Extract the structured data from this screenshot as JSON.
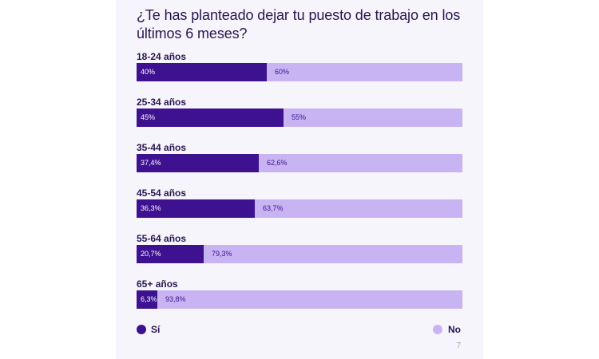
{
  "chart_data": {
    "type": "bar",
    "orientation": "horizontal",
    "stacked": true,
    "title": "¿Te has planteado dejar tu puesto de trabajo en los últimos 6 meses?",
    "categories": [
      "18-24 años",
      "25-34 años",
      "35-44 años",
      "45-54 años",
      "55-64 años",
      "65+ años"
    ],
    "series": [
      {
        "name": "Sí",
        "color": "#3d1190",
        "values": [
          40,
          45,
          37.4,
          36.3,
          20.7,
          6.3
        ],
        "labels": [
          "40%",
          "45%",
          "37,4%",
          "36,3%",
          "20,7%",
          "6,3%"
        ]
      },
      {
        "name": "No",
        "color": "#c8b4f3",
        "values": [
          60,
          55,
          62.6,
          63.7,
          79.3,
          93.8
        ],
        "labels": [
          "60%",
          "55%",
          "62,6%",
          "63,7%",
          "79,3%",
          "93,8%"
        ]
      }
    ],
    "unit": "%",
    "xlim": [
      0,
      100
    ],
    "grid": false,
    "legend_position": "bottom"
  },
  "page_number": "7"
}
